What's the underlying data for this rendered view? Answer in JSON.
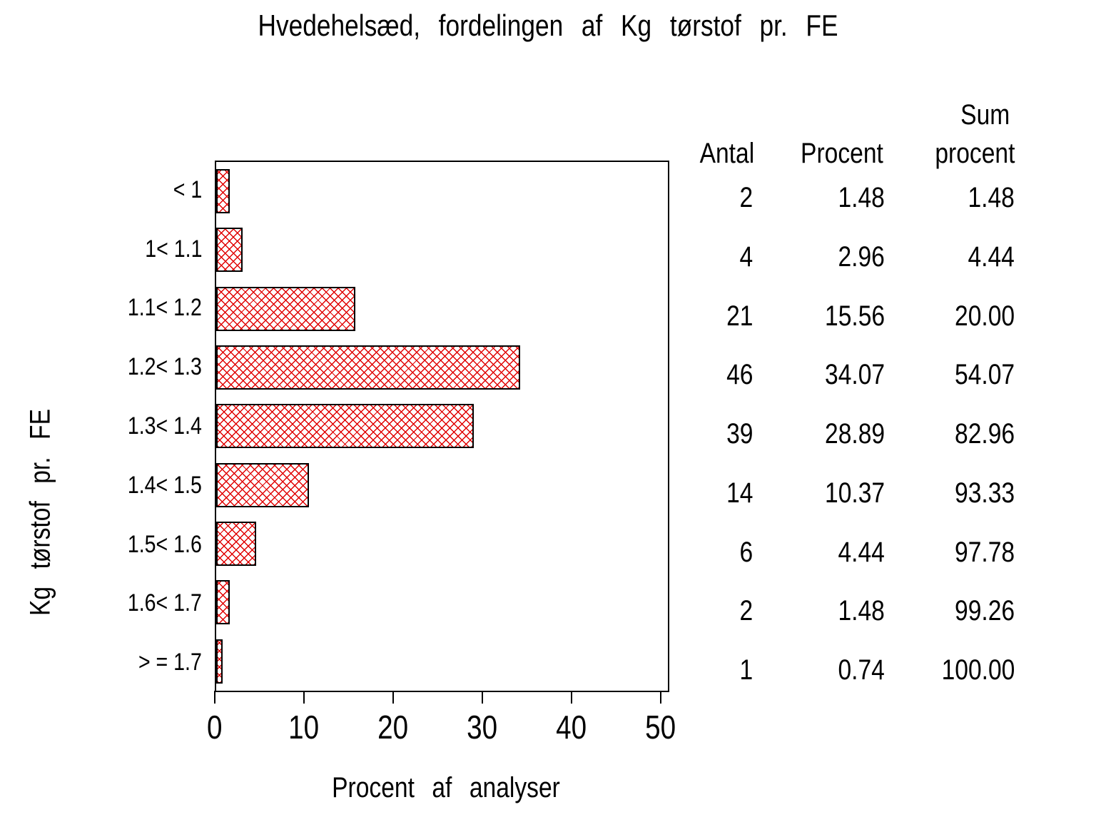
{
  "chart_data": {
    "type": "bar",
    "orientation": "horizontal",
    "title": "Hvedehelsæd, fordelingen af Kg tørstof pr. FE",
    "xlabel": "Procent af analyser",
    "ylabel": "Kg tørstof pr. FE",
    "categories": [
      "< 1",
      "1< 1.1",
      "1.1< 1.2",
      "1.2< 1.3",
      "1.3< 1.4",
      "1.4< 1.5",
      "1.5< 1.6",
      "1.6< 1.7",
      "> = 1.7"
    ],
    "values": [
      1.48,
      2.96,
      15.56,
      34.07,
      28.89,
      10.37,
      4.44,
      1.48,
      0.74
    ],
    "counts": [
      2,
      4,
      21,
      46,
      39,
      14,
      6,
      2,
      1
    ],
    "cumulative_percent": [
      1.48,
      4.44,
      20.0,
      54.07,
      82.96,
      93.33,
      97.78,
      99.26,
      100.0
    ],
    "xlim": [
      0,
      51
    ],
    "xticks": [
      0,
      10,
      20,
      30,
      40,
      50
    ],
    "grid": "off",
    "bar_fill": "red diagonal crosshatch",
    "bar_color": "#e00000",
    "bar_border_color": "#000000",
    "frame_color": "#000000"
  },
  "table": {
    "headers": {
      "antal": "Antal",
      "procent": "Procent",
      "sum_line1": "Sum",
      "sum_line2": "procent"
    },
    "rows": [
      {
        "antal": "2",
        "procent": "1.48",
        "sum": "1.48"
      },
      {
        "antal": "4",
        "procent": "2.96",
        "sum": "4.44"
      },
      {
        "antal": "21",
        "procent": "15.56",
        "sum": "20.00"
      },
      {
        "antal": "46",
        "procent": "34.07",
        "sum": "54.07"
      },
      {
        "antal": "39",
        "procent": "28.89",
        "sum": "82.96"
      },
      {
        "antal": "14",
        "procent": "10.37",
        "sum": "93.33"
      },
      {
        "antal": "6",
        "procent": "4.44",
        "sum": "97.78"
      },
      {
        "antal": "2",
        "procent": "1.48",
        "sum": "99.26"
      },
      {
        "antal": "1",
        "procent": "0.74",
        "sum": "100.00"
      }
    ]
  }
}
